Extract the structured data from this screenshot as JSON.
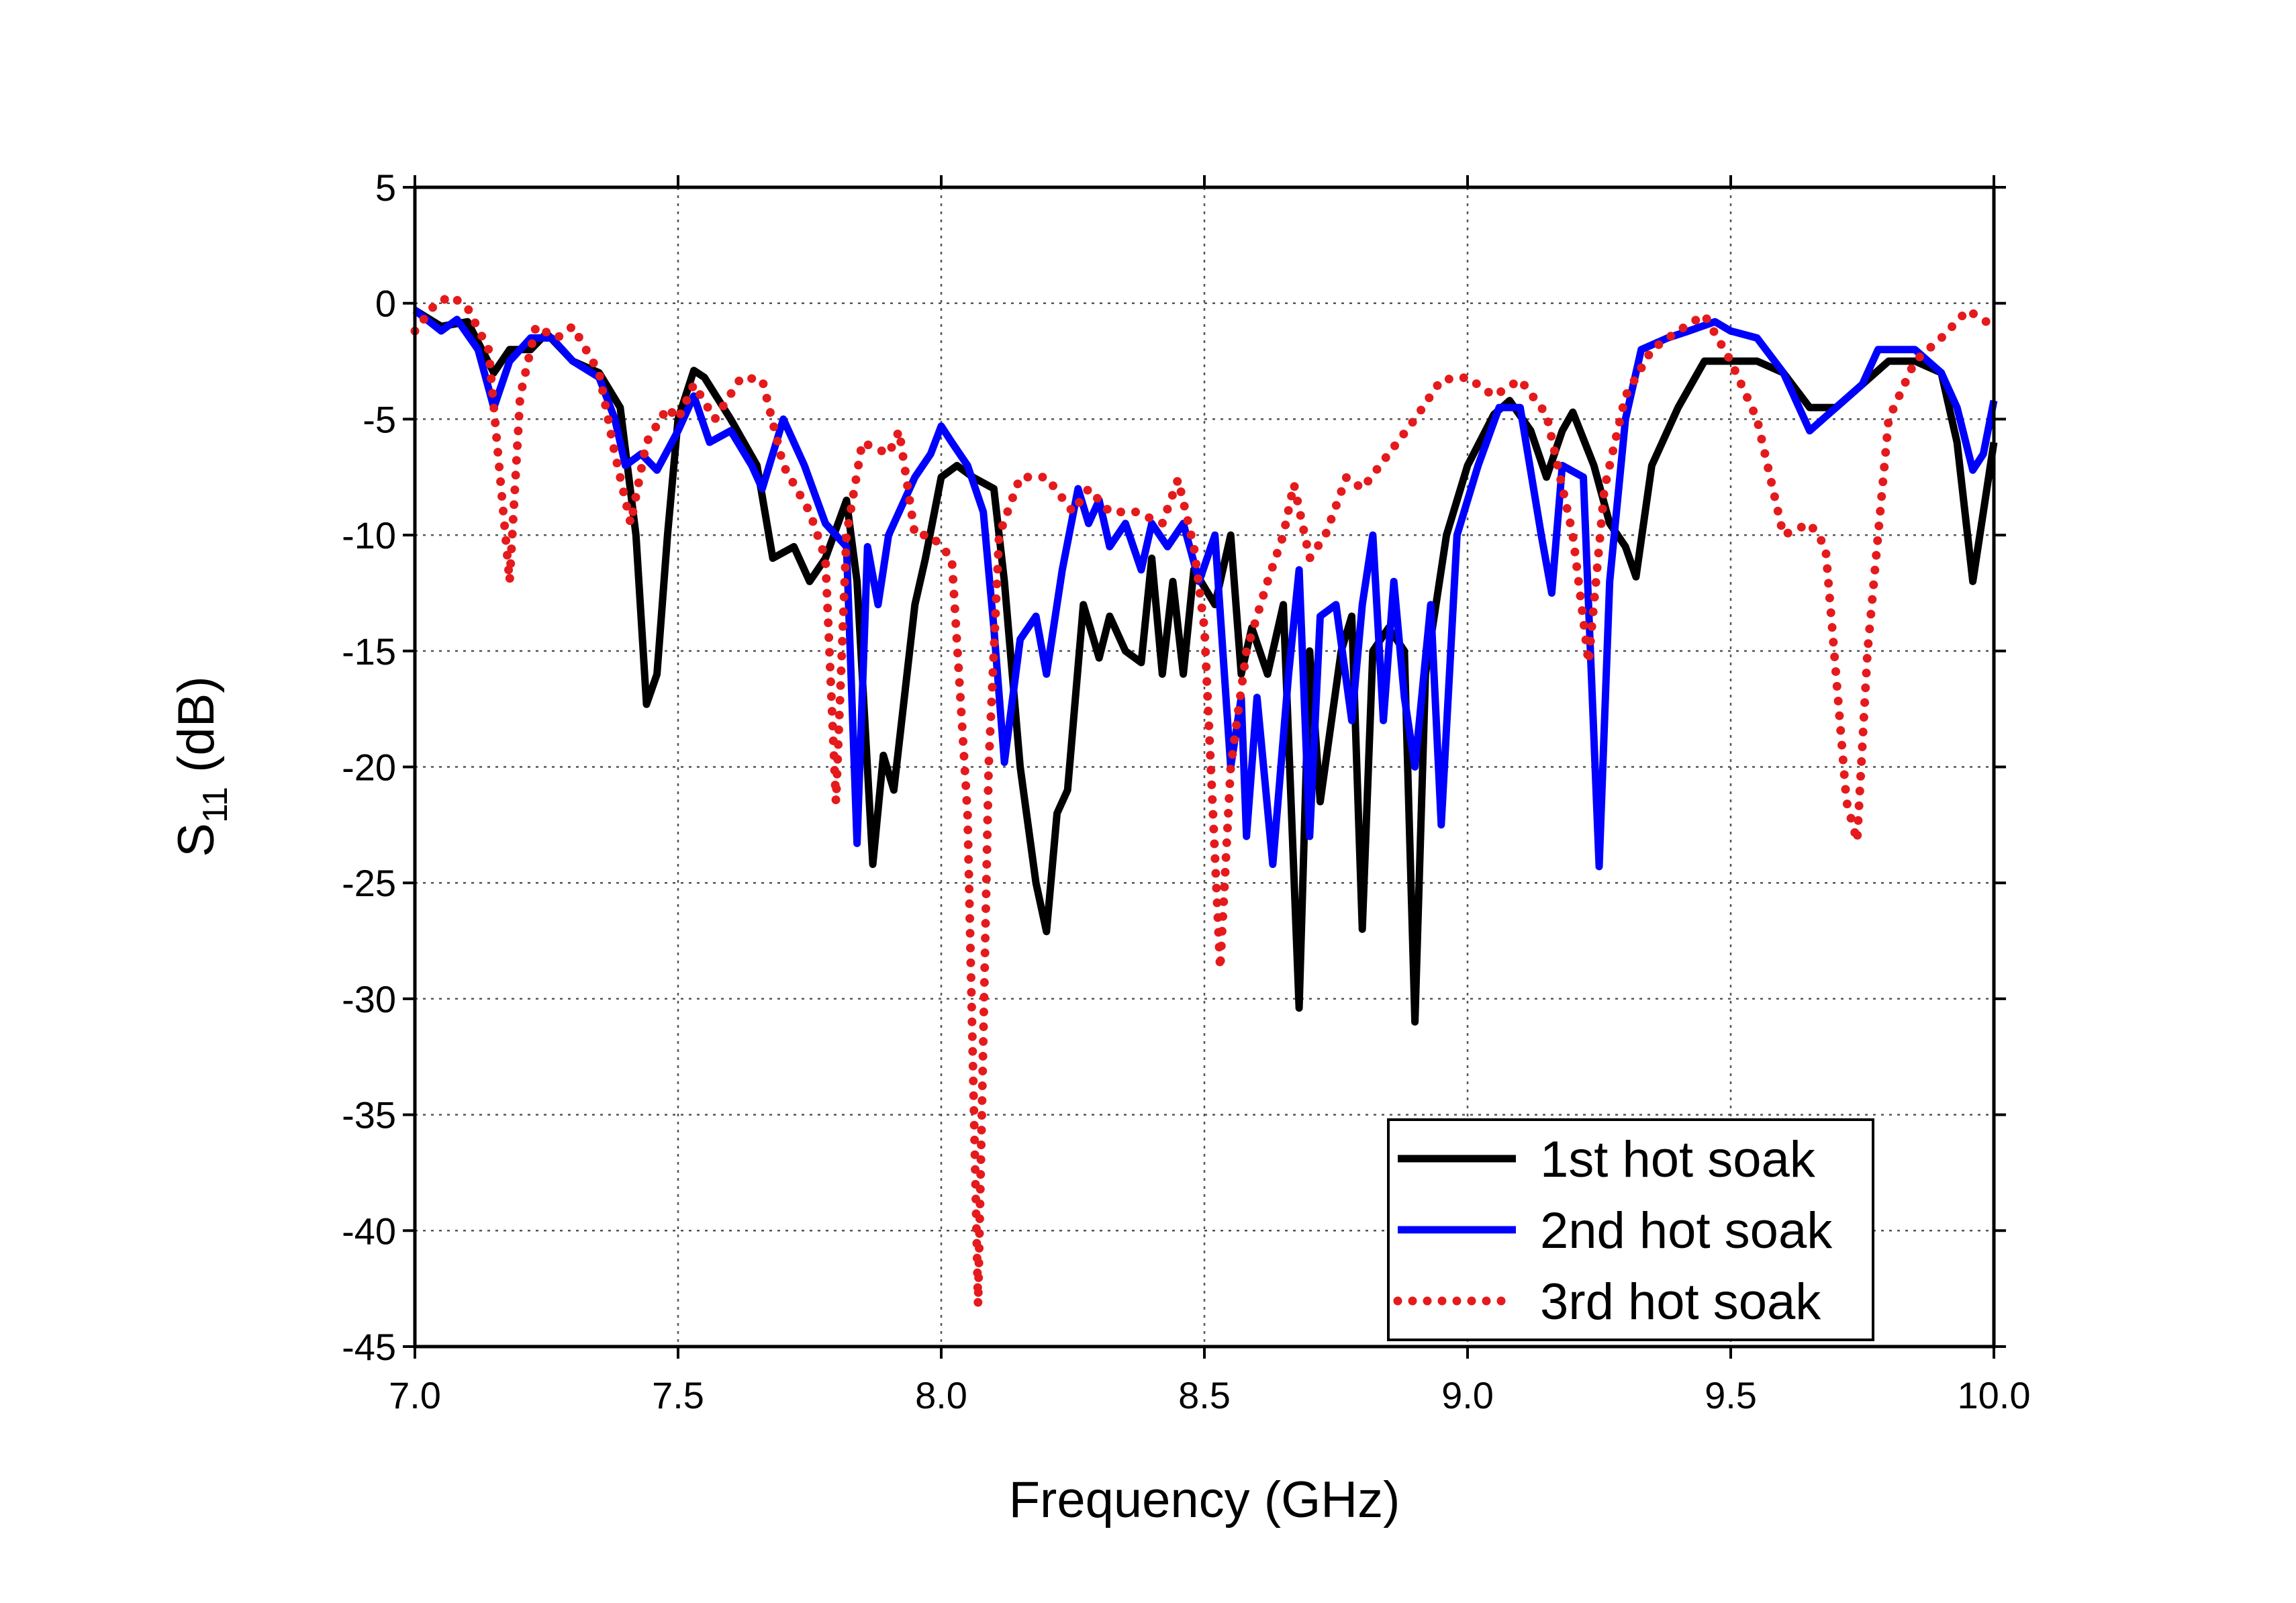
{
  "chart_data": {
    "type": "line",
    "x_label": "Frequency (GHz)",
    "y_label": [
      "S",
      "11",
      " (dB)"
    ],
    "xlim": [
      7.0,
      10.0
    ],
    "xticks": [
      {
        "value": 7,
        "label": "7.0"
      },
      {
        "value": 7.5,
        "label": "7.5"
      },
      {
        "value": 8,
        "label": "8.0"
      },
      {
        "value": 8.5,
        "label": "8.5"
      },
      {
        "value": 9,
        "label": "9.0"
      },
      {
        "value": 9.5,
        "label": "9.5"
      },
      {
        "value": 10,
        "label": "10.0"
      }
    ],
    "ylim": [
      -45,
      5
    ],
    "yticks": [
      5,
      0,
      -5,
      -10,
      -15,
      -20,
      -25,
      -30,
      -35,
      -40,
      -45
    ],
    "grid": true,
    "legend": "lower right",
    "series": [
      {
        "name": "1st hot soak",
        "color": "#000000",
        "style": "solid",
        "x": [
          7.0,
          7.05,
          7.1,
          7.15,
          7.18,
          7.22,
          7.25,
          7.3,
          7.35,
          7.39,
          7.42,
          7.44,
          7.46,
          7.48,
          7.5,
          7.53,
          7.55,
          7.6,
          7.65,
          7.68,
          7.72,
          7.75,
          7.78,
          7.82,
          7.84,
          7.87,
          7.89,
          7.91,
          7.95,
          7.97,
          8.0,
          8.03,
          8.06,
          8.1,
          8.12,
          8.15,
          8.18,
          8.2,
          8.22,
          8.24,
          8.27,
          8.3,
          8.32,
          8.35,
          8.38,
          8.4,
          8.42,
          8.44,
          8.46,
          8.48,
          8.52,
          8.55,
          8.57,
          8.59,
          8.62,
          8.65,
          8.68,
          8.7,
          8.72,
          8.76,
          8.78,
          8.8,
          8.82,
          8.85,
          8.88,
          8.9,
          8.92,
          8.96,
          9.0,
          9.05,
          9.08,
          9.12,
          9.15,
          9.18,
          9.2,
          9.24,
          9.27,
          9.3,
          9.32,
          9.35,
          9.4,
          9.45,
          9.5,
          9.55,
          9.6,
          9.65,
          9.7,
          9.75,
          9.8,
          9.85,
          9.9,
          9.93,
          9.96,
          9.98,
          10.0
        ],
        "values": [
          -0.3,
          -1,
          -0.8,
          -3,
          -2,
          -2,
          -1.3,
          -2.5,
          -3,
          -4.5,
          -10,
          -17.3,
          -16,
          -10,
          -5,
          -2.9,
          -3.2,
          -5,
          -7,
          -11,
          -10.5,
          -12,
          -11,
          -8.5,
          -12,
          -24.2,
          -19.5,
          -21,
          -13,
          -11,
          -7.5,
          -7,
          -7.5,
          -8,
          -12,
          -20,
          -25,
          -27.1,
          -22,
          -21,
          -13,
          -15.3,
          -13.5,
          -15,
          -15.5,
          -11,
          -16,
          -12,
          -16,
          -11.5,
          -13,
          -10,
          -16,
          -14,
          -16,
          -13,
          -30.4,
          -15,
          -21.5,
          -15,
          -13.5,
          -27,
          -15,
          -14,
          -15,
          -31,
          -16,
          -10,
          -7,
          -4.8,
          -4.2,
          -5.5,
          -7.5,
          -5.5,
          -4.7,
          -7,
          -9.5,
          -10.5,
          -11.8,
          -7,
          -4.5,
          -2.5,
          -2.5,
          -2.5,
          -3,
          -4.5,
          -4.5,
          -3.5,
          -2.5,
          -2.5,
          -3,
          -6,
          -12,
          -9,
          -6
        ]
      },
      {
        "name": "2nd hot soak",
        "color": "#0000ff",
        "style": "solid",
        "x": [
          7.0,
          7.05,
          7.08,
          7.12,
          7.15,
          7.18,
          7.22,
          7.26,
          7.3,
          7.35,
          7.38,
          7.4,
          7.43,
          7.46,
          7.5,
          7.53,
          7.56,
          7.6,
          7.64,
          7.66,
          7.7,
          7.74,
          7.78,
          7.82,
          7.84,
          7.86,
          7.88,
          7.9,
          7.95,
          7.98,
          8.0,
          8.02,
          8.05,
          8.08,
          8.1,
          8.12,
          8.15,
          8.18,
          8.2,
          8.23,
          8.26,
          8.28,
          8.3,
          8.32,
          8.35,
          8.38,
          8.4,
          8.43,
          8.46,
          8.49,
          8.52,
          8.55,
          8.57,
          8.58,
          8.6,
          8.63,
          8.66,
          8.68,
          8.7,
          8.72,
          8.75,
          8.78,
          8.8,
          8.82,
          8.84,
          8.86,
          8.88,
          8.9,
          8.93,
          8.95,
          8.98,
          9.02,
          9.06,
          9.1,
          9.14,
          9.16,
          9.18,
          9.22,
          9.25,
          9.27,
          9.3,
          9.33,
          9.38,
          9.42,
          9.47,
          9.5,
          9.55,
          9.6,
          9.65,
          9.7,
          9.75,
          9.78,
          9.85,
          9.9,
          9.93,
          9.96,
          9.98,
          10.0
        ],
        "values": [
          -0.3,
          -1.2,
          -0.7,
          -2,
          -4.5,
          -2.5,
          -1.5,
          -1.5,
          -2.5,
          -3.2,
          -5,
          -7,
          -6.5,
          -7.2,
          -5.5,
          -4,
          -6,
          -5.5,
          -7,
          -8,
          -5,
          -7,
          -9.5,
          -10.5,
          -23.3,
          -10.5,
          -13,
          -10,
          -7.5,
          -6.5,
          -5.3,
          -6,
          -7,
          -9,
          -14,
          -19.8,
          -14.5,
          -13.5,
          -16,
          -11.5,
          -8,
          -9.5,
          -8.5,
          -10.5,
          -9.5,
          -11.5,
          -9.5,
          -10.5,
          -9.5,
          -12,
          -10,
          -20,
          -17,
          -23,
          -17,
          -24.2,
          -16,
          -11.5,
          -23,
          -13.5,
          -13,
          -18,
          -13,
          -10,
          -18,
          -12,
          -17,
          -20,
          -13,
          -22.5,
          -10,
          -7,
          -4.5,
          -4.5,
          -10,
          -12.5,
          -7,
          -7.5,
          -24.3,
          -12,
          -5,
          -2,
          -1.5,
          -1.2,
          -0.8,
          -1.2,
          -1.5,
          -3,
          -5.5,
          -4.5,
          -3.5,
          -2,
          -2,
          -3,
          -4.5,
          -7.2,
          -6.5,
          -4.2
        ]
      },
      {
        "name": "3rd hot soak",
        "color": "#e41a1c",
        "style": "dotted",
        "x": [
          7.0,
          7.04,
          7.07,
          7.1,
          7.14,
          7.16,
          7.18,
          7.2,
          7.23,
          7.27,
          7.3,
          7.35,
          7.38,
          7.41,
          7.44,
          7.48,
          7.5,
          7.53,
          7.57,
          7.62,
          7.66,
          7.7,
          7.75,
          7.78,
          7.8,
          7.82,
          7.85,
          7.9,
          7.92,
          7.95,
          7.98,
          8.02,
          8.05,
          8.07,
          8.09,
          8.11,
          8.15,
          8.2,
          8.25,
          8.28,
          8.32,
          8.37,
          8.42,
          8.45,
          8.48,
          8.5,
          8.53,
          8.55,
          8.58,
          8.62,
          8.65,
          8.67,
          8.7,
          8.73,
          8.77,
          8.8,
          8.85,
          8.9,
          8.95,
          9.0,
          9.05,
          9.1,
          9.15,
          9.2,
          9.23,
          9.26,
          9.3,
          9.35,
          9.4,
          9.45,
          9.5,
          9.55,
          9.6,
          9.65,
          9.68,
          9.72,
          9.74,
          9.76,
          9.8,
          9.85,
          9.9,
          9.95,
          10.0
        ],
        "values": [
          -1.2,
          0,
          0.3,
          -0.2,
          -2,
          -7,
          -12,
          -4,
          -1,
          -1.5,
          -1,
          -3,
          -6.5,
          -9.5,
          -6,
          -4.5,
          -5,
          -3.5,
          -5,
          -3.2,
          -3.3,
          -7,
          -9,
          -11,
          -21.5,
          -10,
          -6,
          -6.5,
          -5.5,
          -10,
          -10,
          -11,
          -22,
          -43.2,
          -20,
          -10,
          -7.5,
          -7.5,
          -9,
          -8,
          -9,
          -9,
          -9.5,
          -7.6,
          -10.5,
          -14,
          -28.7,
          -20,
          -15,
          -12,
          -10,
          -7.8,
          -11,
          -10,
          -7.5,
          -8,
          -6.5,
          -5,
          -3.3,
          -3.2,
          -4,
          -3.3,
          -4.8,
          -10,
          -15.5,
          -8,
          -4,
          -2,
          -1.2,
          -0.5,
          -2.5,
          -5,
          -10,
          -9.5,
          -10.5,
          -21.5,
          -23.2,
          -15,
          -5,
          -2.5,
          -1.5,
          -0.3,
          -1
        ]
      }
    ]
  }
}
